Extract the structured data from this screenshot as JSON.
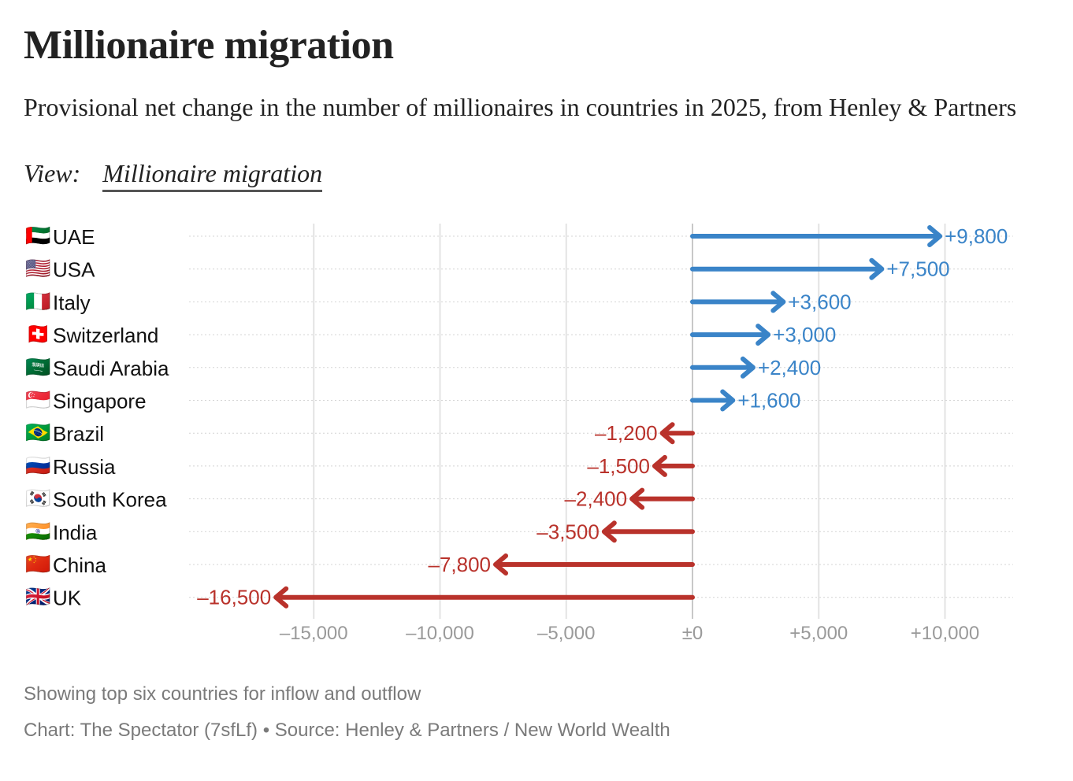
{
  "header": {
    "title": "Millionaire migration",
    "subtitle": "Provisional net change in the number of millionaires in countries in 2025, from Henley & Partners",
    "view_label": "View:",
    "view_selected": "Millionaire migration"
  },
  "colors": {
    "positive": "#3a84c8",
    "negative": "#b9322b",
    "gridline": "#e3e3e3",
    "zeroline": "#c8c8c8",
    "rowline": "#d4d4d4",
    "tick_text": "#9a9a9a",
    "footer_text": "#7a7a7a"
  },
  "chart_data": {
    "type": "bar",
    "orientation": "horizontal",
    "mark": "arrow",
    "title": "Millionaire migration",
    "subtitle": "Provisional net change in the number of millionaires in countries in 2025, from Henley & Partners",
    "xlabel": "",
    "ylabel": "",
    "categories": [
      "UAE",
      "USA",
      "Italy",
      "Switzerland",
      "Saudi Arabia",
      "Singapore",
      "Brazil",
      "Russia",
      "South Korea",
      "India",
      "China",
      "UK"
    ],
    "flags": [
      "🇦🇪",
      "🇺🇸",
      "🇮🇹",
      "🇨🇭",
      "🇸🇦",
      "🇸🇬",
      "🇧🇷",
      "🇷🇺",
      "🇰🇷",
      "🇮🇳",
      "🇨🇳",
      "🇬🇧"
    ],
    "values": [
      9800,
      7500,
      3600,
      3000,
      2400,
      1600,
      -1200,
      -1500,
      -2400,
      -3500,
      -7800,
      -16500
    ],
    "value_labels": [
      "+9,800",
      "+7,500",
      "+3,600",
      "+3,000",
      "+2,400",
      "+1,600",
      "–1,200",
      "–1,500",
      "–2,400",
      "–3,500",
      "–7,800",
      "–16,500"
    ],
    "xlim": [
      -19000,
      12700
    ],
    "xticks": [
      -15000,
      -10000,
      -5000,
      0,
      5000,
      10000
    ],
    "xtick_labels": [
      "–15,000",
      "–10,000",
      "–5,000",
      "±0",
      "+5,000",
      "+10,000"
    ],
    "grid": true,
    "legend": "none"
  },
  "footer": {
    "note": "Showing top six countries for inflow and outflow",
    "source": "Chart: The Spectator (7sfLf) • Source: Henley & Partners / New World Wealth"
  }
}
